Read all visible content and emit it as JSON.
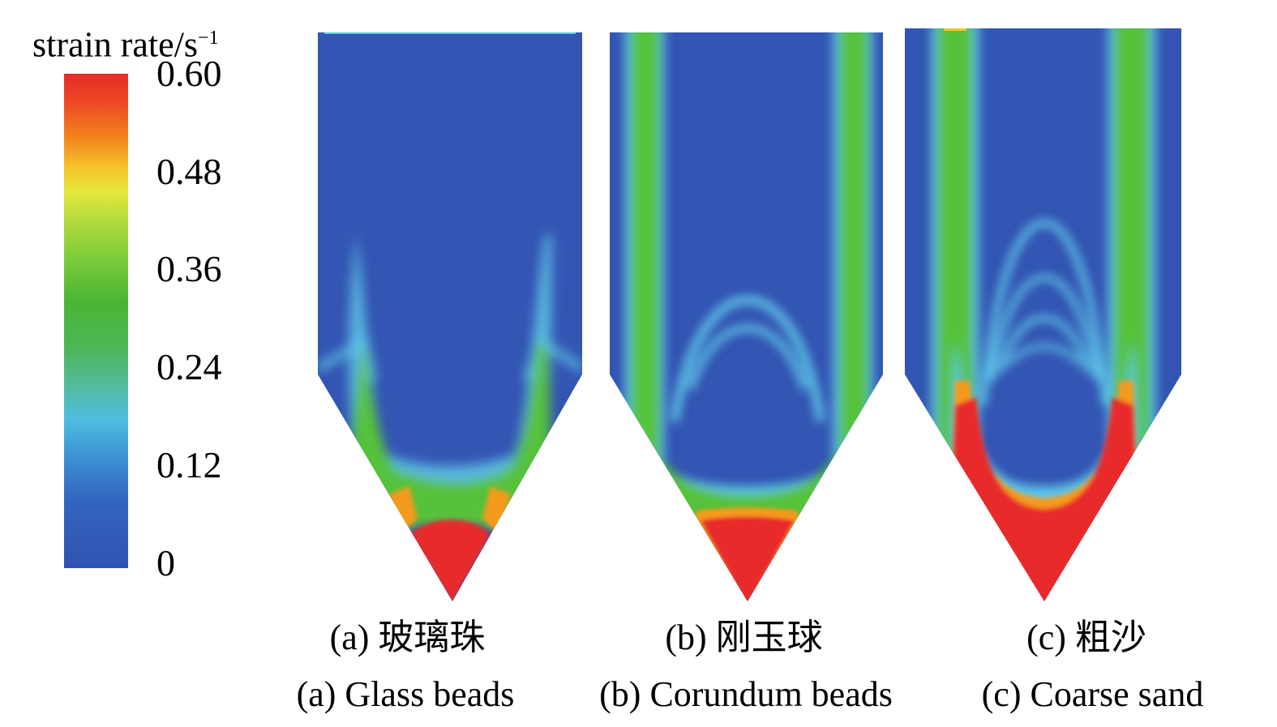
{
  "legend": {
    "title": "strain rate/s",
    "title_exponent": "−1",
    "ticks": [
      "0.60",
      "0.48",
      "0.36",
      "0.24",
      "0.12",
      "0"
    ],
    "colormap": [
      "#e62a28",
      "#f2851d",
      "#e4e83c",
      "#4ab534",
      "#4fbde0",
      "#2f52b0"
    ]
  },
  "panels": [
    {
      "caption_cn": "(a) 玻璃珠",
      "caption_en": "(a) Glass beads"
    },
    {
      "caption_cn": "(b) 刚玉球",
      "caption_en": "(b) Corundum beads"
    },
    {
      "caption_cn": "(c) 粗沙",
      "caption_en": "(c) Coarse sand"
    }
  ],
  "colors": {
    "low": "#3355b3",
    "mid": "#56c23b",
    "high": "#e82a2c",
    "edge": "#5fc8e8"
  }
}
